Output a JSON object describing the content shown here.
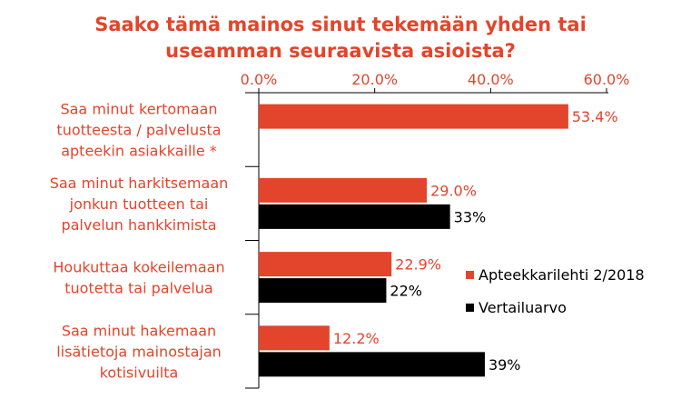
{
  "chart_data": {
    "type": "bar",
    "orientation": "horizontal",
    "title_lines": [
      "Saako tämä mainos sinut tekemään yhden tai",
      "useamman seuraavista asioista?"
    ],
    "categories": [
      [
        "Saa minut kertomaan",
        "tuotteesta / palvelusta",
        "apteekin asiakkaille *"
      ],
      [
        "Saa minut harkitsemaan",
        "jonkun tuotteen tai",
        "palvelun hankkimista"
      ],
      [
        "Houkuttaa kokeilemaan",
        "tuotetta tai palvelua"
      ],
      [
        "Saa minut hakemaan",
        "lisätietoja mainostajan",
        "kotisivuilta"
      ]
    ],
    "series": [
      {
        "name": "Apteekkarilehti 2/2018",
        "color": "#e2452b",
        "values": [
          53.4,
          29.0,
          22.9,
          12.2
        ],
        "labels": [
          "53.4%",
          "29.0%",
          "22.9%",
          "12.2%"
        ]
      },
      {
        "name": "Vertailuarvo",
        "color": "#000000",
        "values": [
          null,
          33,
          22,
          39
        ],
        "labels": [
          "",
          "33%",
          "22%",
          "39%"
        ]
      }
    ],
    "xlim": [
      0,
      60
    ],
    "xticks": [
      "0.0%",
      "20.0%",
      "40.0%",
      "60.0%"
    ],
    "xticks_position": "top",
    "grid": false,
    "legend_position": "right"
  }
}
